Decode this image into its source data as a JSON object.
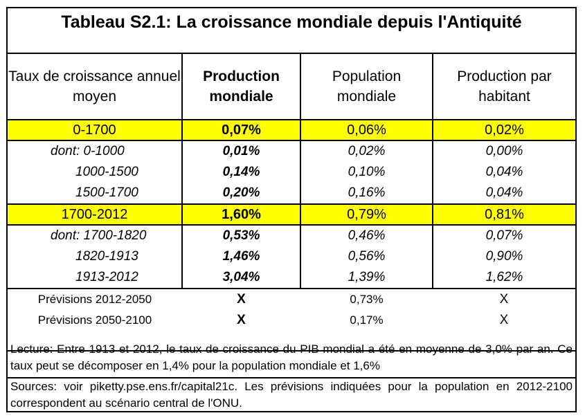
{
  "title": "Tableau S2.1: La croissance mondiale depuis l'Antiquité",
  "header": {
    "col1": "Taux de croissance annuel moyen",
    "col2": "Production mondiale",
    "col3": "Population mondiale",
    "col4": "Production par habitant"
  },
  "periods": [
    {
      "label": "0-1700",
      "production": "0,07%",
      "population": "0,06%",
      "per_capita": "0,02%"
    },
    {
      "label": "dont: 0-1000",
      "production": "0,01%",
      "population": "0,02%",
      "per_capita": "0,00%"
    },
    {
      "label": "1000-1500",
      "production": "0,14%",
      "population": "0,10%",
      "per_capita": "0,04%"
    },
    {
      "label": "1500-1700",
      "production": "0,20%",
      "population": "0,16%",
      "per_capita": "0,04%"
    },
    {
      "label": "1700-2012",
      "production": "1,60%",
      "population": "0,79%",
      "per_capita": "0,81%"
    },
    {
      "label": "dont: 1700-1820",
      "production": "0,53%",
      "population": "0,46%",
      "per_capita": "0,07%"
    },
    {
      "label": "1820-1913",
      "production": "1,46%",
      "population": "0,56%",
      "per_capita": "0,90%"
    },
    {
      "label": "1913-2012",
      "production": "3,04%",
      "population": "1,39%",
      "per_capita": "1,62%"
    },
    {
      "label": "Prévisions 2012-2050",
      "production": "X",
      "population": "0,73%",
      "per_capita": "X"
    },
    {
      "label": "Prévisions 2050-2100",
      "production": "X",
      "population": "0,17%",
      "per_capita": "X"
    }
  ],
  "notes": {
    "lecture": "Lecture: Entre 1913 et 2012, le taux de croissance du PIB mondial a été en moyenne de 3,0% par an. Ce taux peut se décomposer en 1,4% pour la population mondiale et 1,6%",
    "sources": "Sources: voir piketty.pse.ens.fr/capital21c. Les prévisions indiquées pour la population en 2012-2100 correspondent au scénario central de l'ONU."
  },
  "colors": {
    "highlight": "#ffff00",
    "border": "#000000"
  }
}
